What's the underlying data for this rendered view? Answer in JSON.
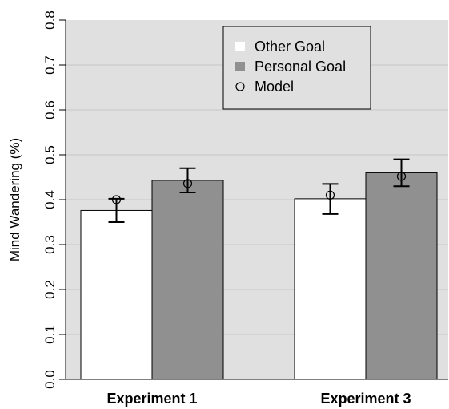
{
  "chart_data": {
    "type": "bar",
    "title": "",
    "xlabel": "",
    "ylabel": "Mind Wandering (%)",
    "ylim": [
      0,
      0.8
    ],
    "yticks": [
      "0.0",
      "0.1",
      "0.2",
      "0.3",
      "0.4",
      "0.5",
      "0.6",
      "0.7",
      "0.8"
    ],
    "grid": true,
    "background_color": "#e0e0e0",
    "legend_position": "top-right",
    "categories": [
      "Experiment 1",
      "Experiment 3"
    ],
    "series": [
      {
        "name": "Other Goal",
        "color": "#ffffff",
        "values": [
          0.376,
          0.402
        ],
        "error_low": [
          0.35,
          0.368
        ],
        "error_high": [
          0.402,
          0.435
        ],
        "model": [
          0.4,
          0.41
        ]
      },
      {
        "name": "Personal Goal",
        "color": "#909090",
        "values": [
          0.443,
          0.46
        ],
        "error_low": [
          0.416,
          0.43
        ],
        "error_high": [
          0.47,
          0.49
        ],
        "model": [
          0.436,
          0.452
        ]
      }
    ],
    "legend": [
      {
        "label": "Other Goal",
        "marker": "square",
        "color": "#ffffff"
      },
      {
        "label": "Personal Goal",
        "marker": "square",
        "color": "#909090"
      },
      {
        "label": "Model",
        "marker": "circle",
        "color": "none"
      }
    ]
  }
}
